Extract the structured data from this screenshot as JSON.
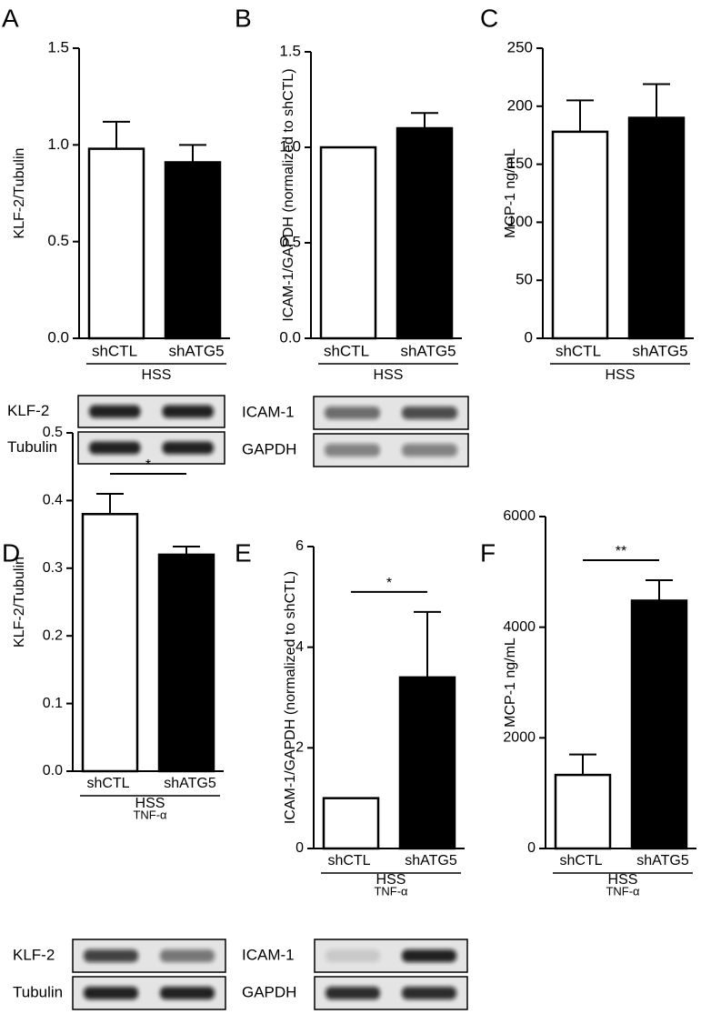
{
  "chart_data": [
    {
      "type": "bar",
      "panel": "A",
      "ylabel": "KLF-2/Tubulin",
      "categories": [
        "shCTL",
        "shATG5"
      ],
      "values": [
        0.98,
        0.91
      ],
      "errors": [
        0.14,
        0.09
      ],
      "colors": [
        "#ffffff",
        "#000000"
      ],
      "ylim": [
        0,
        1.5
      ],
      "yticks": [
        {
          "value": 0,
          "label": "0.0"
        },
        0.5,
        {
          "value": 1,
          "label": "1.0"
        },
        1.5
      ],
      "group_labels": [
        "HSS"
      ],
      "blots": [
        "KLF-2",
        "Tubulin"
      ]
    },
    {
      "type": "bar",
      "panel": "B",
      "ylabel": "ICAM-1/GAPDH (normalized to shCTL)",
      "categories": [
        "shCTL",
        "shATG5"
      ],
      "values": [
        1,
        1.1
      ],
      "errors": [
        null,
        0.08
      ],
      "colors": [
        "#ffffff",
        "#000000"
      ],
      "ylim": [
        0,
        1.5
      ],
      "yticks": [
        {
          "value": 0,
          "label": "0.0"
        },
        0.5,
        {
          "value": 1,
          "label": "1.0"
        },
        1.5
      ],
      "group_labels": [
        "HSS"
      ],
      "blots": [
        "ICAM-1",
        "GAPDH"
      ]
    },
    {
      "type": "bar",
      "panel": "C",
      "ylabel": "MCP-1 ng/mL",
      "categories": [
        "shCTL",
        "shATG5"
      ],
      "values": [
        178,
        190
      ],
      "errors": [
        27,
        29
      ],
      "colors": [
        "#ffffff",
        "#000000"
      ],
      "ylim": [
        0,
        250
      ],
      "yticks": [
        0,
        50,
        100,
        150,
        200,
        250
      ],
      "group_labels": [
        "HSS"
      ]
    },
    {
      "type": "bar",
      "panel": "D",
      "ylabel": "KLF-2/Tubulin",
      "categories": [
        "shCTL",
        "shATG5"
      ],
      "values": [
        0.38,
        0.32
      ],
      "errors": [
        0.03,
        0.012
      ],
      "colors": [
        "#ffffff",
        "#000000"
      ],
      "ylim": [
        0,
        0.5
      ],
      "yticks": [
        {
          "value": 0,
          "label": "0.0"
        },
        0.1,
        0.2,
        0.3,
        0.4,
        0.5
      ],
      "group_labels": [
        "HSS",
        "TNF-α"
      ],
      "significance": "*",
      "blots": [
        "KLF-2",
        "Tubulin"
      ]
    },
    {
      "type": "bar",
      "panel": "E",
      "ylabel": "ICAM-1/GAPDH (normalized to shCTL)",
      "categories": [
        "shCTL",
        "shATG5"
      ],
      "values": [
        1,
        3.4
      ],
      "errors": [
        null,
        1.3
      ],
      "colors": [
        "#ffffff",
        "#000000"
      ],
      "ylim": [
        0,
        6
      ],
      "yticks": [
        0,
        2,
        4,
        6
      ],
      "group_labels": [
        "HSS",
        "TNF-α"
      ],
      "significance": "*",
      "blots": [
        "ICAM-1",
        "GAPDH"
      ]
    },
    {
      "type": "bar",
      "panel": "F",
      "ylabel": "MCP-1 ng/mL",
      "categories": [
        "shCTL",
        "shATG5"
      ],
      "values": [
        1330,
        4480
      ],
      "errors": [
        370,
        370
      ],
      "colors": [
        "#ffffff",
        "#000000"
      ],
      "ylim": [
        0,
        6000
      ],
      "yticks": [
        0,
        2000,
        4000,
        6000
      ],
      "group_labels": [
        "HSS",
        "TNF-α"
      ],
      "significance": "**"
    }
  ]
}
